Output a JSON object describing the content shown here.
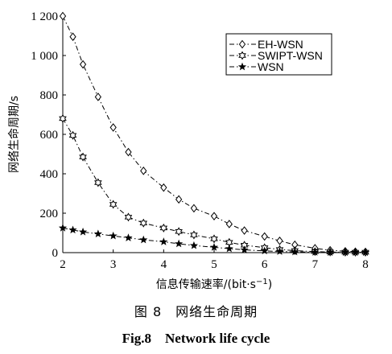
{
  "chart_data": {
    "type": "line",
    "title": "",
    "xlabel": "信息传输速率/(bit·s",
    "xlabel_sup": "−1",
    "xlabel_tail": ")",
    "ylabel": "网络生命周期/s",
    "xlim": [
      2,
      8
    ],
    "ylim": [
      0,
      1200
    ],
    "xticks": [
      "2",
      "3",
      "4",
      "5",
      "6",
      "7",
      "8"
    ],
    "yticks": [
      "0",
      "200",
      "400",
      "600",
      "800",
      "1 000",
      "1 200"
    ],
    "grid": false,
    "legend_position": "top-right",
    "x": [
      2.0,
      2.2,
      2.4,
      2.7,
      3.0,
      3.3,
      3.6,
      4.0,
      4.3,
      4.6,
      5.0,
      5.3,
      5.6,
      6.0,
      6.3,
      6.6,
      7.0,
      7.3,
      7.6,
      7.8,
      8.0
    ],
    "series": [
      {
        "name": "EH-WSN",
        "marker": "diamond",
        "values": [
          1200,
          1095,
          955,
          790,
          635,
          510,
          415,
          330,
          270,
          225,
          185,
          145,
          112,
          82,
          60,
          40,
          22,
          12,
          7,
          5,
          4
        ]
      },
      {
        "name": "SWIPT-WSN",
        "marker": "hexagram",
        "values": [
          680,
          595,
          485,
          355,
          245,
          180,
          150,
          125,
          107,
          90,
          70,
          52,
          38,
          25,
          16,
          10,
          5,
          3,
          2,
          2,
          2
        ]
      },
      {
        "name": "WSN",
        "marker": "star",
        "values": [
          125,
          115,
          105,
          95,
          85,
          75,
          65,
          55,
          45,
          36,
          27,
          20,
          14,
          9,
          6,
          4,
          2,
          1,
          1,
          1,
          1
        ]
      }
    ]
  },
  "captions": {
    "cn": "图 8　网络生命周期",
    "en": "Fig.8　Network life cycle"
  }
}
